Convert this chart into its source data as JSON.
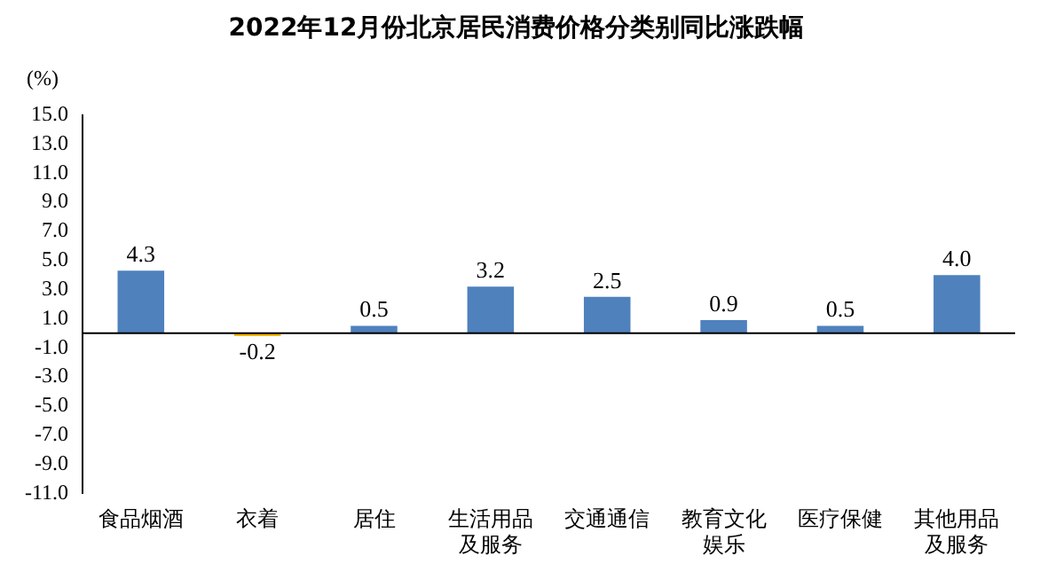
{
  "chart_data": {
    "type": "bar",
    "title": "2022年12月份北京居民消费价格分类别同比涨跌幅",
    "ylabel": "(%)",
    "categories": [
      "食品烟酒",
      "衣着",
      "居住",
      "生活用品及服务",
      "交通通信",
      "教育文化娱乐",
      "医疗保健",
      "其他用品及服务"
    ],
    "values": [
      4.3,
      -0.2,
      0.5,
      3.2,
      2.5,
      0.9,
      0.5,
      4.0
    ],
    "colors": [
      "#4f81bd",
      "#f0b400",
      "#4f81bd",
      "#4f81bd",
      "#4f81bd",
      "#4f81bd",
      "#4f81bd",
      "#4f81bd"
    ],
    "value_labels": [
      "4.3",
      "-0.2",
      "0.5",
      "3.2",
      "2.5",
      "0.9",
      "0.5",
      "4.0"
    ],
    "ylim": [
      -11,
      15
    ],
    "yticks": [
      {
        "value": 15,
        "label": "15.0"
      },
      {
        "value": 13,
        "label": "13.0"
      },
      {
        "value": 11,
        "label": "11.0"
      },
      {
        "value": 9,
        "label": "9.0"
      },
      {
        "value": 7,
        "label": "7.0"
      },
      {
        "value": 5,
        "label": "5.0"
      },
      {
        "value": 3,
        "label": "3.0"
      },
      {
        "value": 1,
        "label": "1.0"
      },
      {
        "value": -1,
        "label": "-1.0"
      },
      {
        "value": -3,
        "label": "-3.0"
      },
      {
        "value": -5,
        "label": "-5.0"
      },
      {
        "value": -7,
        "label": "-7.0"
      },
      {
        "value": -9,
        "label": "-9.0"
      },
      {
        "value": -11,
        "label": "-11.0"
      }
    ],
    "grid": false,
    "legend": false
  }
}
